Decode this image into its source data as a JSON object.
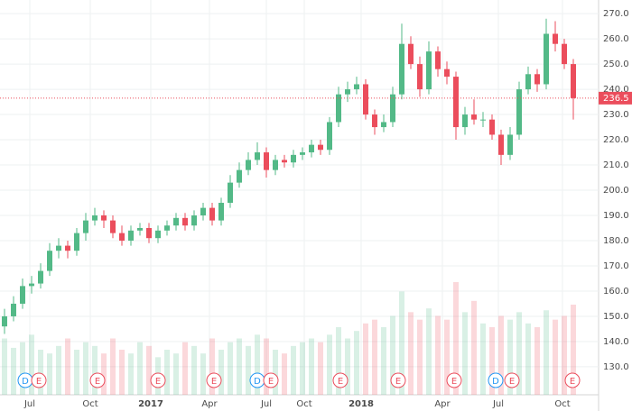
{
  "chart_data": {
    "type": "candlestick",
    "xlim": [
      -0.5,
      65.8
    ],
    "xticks": [
      {
        "value": 2.8,
        "label": "Jul"
      },
      {
        "value": 9.5,
        "label": "Oct"
      },
      {
        "value": 16.2,
        "label": "2017"
      },
      {
        "value": 22.7,
        "label": "Apr"
      },
      {
        "value": 29,
        "label": "Jul"
      },
      {
        "value": 33.2,
        "label": "Oct"
      },
      {
        "value": 39.5,
        "label": "2018"
      },
      {
        "value": 48.5,
        "label": "Apr"
      },
      {
        "value": 54.7,
        "label": "Jul"
      },
      {
        "value": 61.8,
        "label": "Oct"
      }
    ],
    "ylim": [
      118.9,
      275.4
    ],
    "yticks": [
      {
        "value": 130,
        "label": "130.0"
      },
      {
        "value": 140,
        "label": "140.0"
      },
      {
        "value": 150,
        "label": "150.0"
      },
      {
        "value": 160,
        "label": "160.0"
      },
      {
        "value": 170,
        "label": "170.0"
      },
      {
        "value": 180,
        "label": "180.0"
      },
      {
        "value": 190,
        "label": "190.0"
      },
      {
        "value": 200,
        "label": "200.0"
      },
      {
        "value": 210,
        "label": "210.0"
      },
      {
        "value": 220,
        "label": "220.0"
      },
      {
        "value": 230,
        "label": "230.0"
      },
      {
        "value": 240,
        "label": "240.0"
      },
      {
        "value": 250,
        "label": "250.0"
      },
      {
        "value": 260,
        "label": "260.0"
      },
      {
        "value": 270,
        "label": "270.0"
      }
    ],
    "grid": true,
    "up_color": "#53b987",
    "down_color": "#eb4d5c",
    "open": [
      146,
      150,
      155,
      162,
      163,
      168,
      176,
      178,
      176,
      183,
      188,
      190,
      188,
      183,
      180,
      184,
      185,
      181,
      184,
      186,
      189,
      186,
      190,
      193,
      188,
      195,
      203,
      208,
      212,
      215,
      208,
      212,
      211,
      214,
      215,
      218,
      216,
      227,
      238,
      240,
      242,
      230,
      225,
      227,
      238,
      258,
      250,
      240,
      255,
      248,
      245,
      225,
      230,
      228,
      228,
      222,
      214,
      222,
      240,
      246,
      242,
      262,
      258,
      250
    ],
    "high": [
      153,
      158,
      165,
      166,
      171,
      179,
      181,
      180,
      185,
      191,
      193,
      192,
      190,
      186,
      186,
      187,
      187,
      186,
      188,
      191,
      191,
      192,
      195,
      195,
      197,
      206,
      211,
      215,
      219,
      217,
      214,
      214,
      216,
      217,
      220,
      220,
      229,
      241,
      243,
      245,
      244,
      232,
      230,
      241,
      266,
      261,
      253,
      259,
      257,
      251,
      247,
      233,
      236,
      231,
      230,
      224,
      225,
      243,
      249,
      248,
      268,
      267,
      260,
      252
    ],
    "low": [
      143,
      148,
      153,
      159,
      161,
      166,
      173,
      173,
      174,
      180,
      186,
      185,
      181,
      178,
      178,
      182,
      179,
      179,
      182,
      184,
      184,
      184,
      188,
      186,
      186,
      193,
      201,
      206,
      210,
      205,
      206,
      209,
      209,
      212,
      213,
      214,
      214,
      225,
      235,
      238,
      228,
      222,
      223,
      225,
      236,
      248,
      237,
      238,
      245,
      242,
      220,
      222,
      226,
      225,
      220,
      210,
      212,
      220,
      238,
      239,
      240,
      255,
      248,
      228
    ],
    "close": [
      150,
      155,
      162,
      163,
      168,
      176,
      178,
      176,
      183,
      188,
      190,
      188,
      183,
      180,
      184,
      185,
      181,
      184,
      186,
      189,
      186,
      190,
      193,
      188,
      195,
      203,
      208,
      212,
      215,
      208,
      212,
      211,
      214,
      215,
      218,
      216,
      227,
      238,
      240,
      242,
      230,
      225,
      227,
      238,
      258,
      250,
      240,
      255,
      248,
      245,
      225,
      230,
      228,
      228,
      222,
      214,
      222,
      240,
      246,
      242,
      262,
      258,
      250,
      236.5
    ],
    "volume": [
      30,
      25,
      28,
      32,
      24,
      22,
      26,
      30,
      24,
      28,
      26,
      22,
      30,
      24,
      22,
      28,
      26,
      20,
      24,
      22,
      28,
      26,
      22,
      30,
      24,
      28,
      30,
      26,
      32,
      30,
      24,
      22,
      26,
      28,
      30,
      28,
      32,
      36,
      30,
      34,
      38,
      40,
      36,
      42,
      55,
      44,
      40,
      46,
      42,
      40,
      60,
      44,
      50,
      38,
      36,
      42,
      40,
      44,
      38,
      36,
      45,
      40,
      42,
      48
    ],
    "last_price": 236.5,
    "last_price_color": "#eb4d5c",
    "events": [
      {
        "label": "D",
        "x": 2.3,
        "color": "#2196f3"
      },
      {
        "label": "E",
        "x": 3.8,
        "color": "#eb4d5c"
      },
      {
        "label": "E",
        "x": 10.3,
        "color": "#eb4d5c"
      },
      {
        "label": "E",
        "x": 17,
        "color": "#eb4d5c"
      },
      {
        "label": "E",
        "x": 23.2,
        "color": "#eb4d5c"
      },
      {
        "label": "D",
        "x": 28,
        "color": "#2196f3"
      },
      {
        "label": "E",
        "x": 29.5,
        "color": "#eb4d5c"
      },
      {
        "label": "E",
        "x": 37.2,
        "color": "#eb4d5c"
      },
      {
        "label": "E",
        "x": 43.6,
        "color": "#eb4d5c"
      },
      {
        "label": "E",
        "x": 49.8,
        "color": "#eb4d5c"
      },
      {
        "label": "D",
        "x": 54.4,
        "color": "#2196f3"
      },
      {
        "label": "E",
        "x": 56.2,
        "color": "#eb4d5c"
      },
      {
        "label": "E",
        "x": 62.9,
        "color": "#eb4d5c"
      }
    ]
  }
}
